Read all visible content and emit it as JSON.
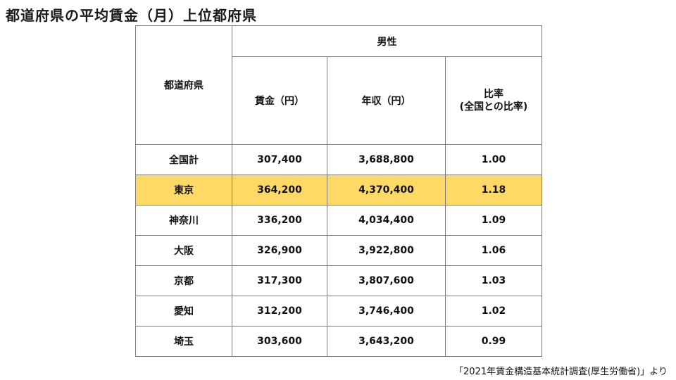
{
  "title": "都道府県の平均賃金（月）上位都府県",
  "table": {
    "header_prefecture": "都道府県",
    "header_group": "男性",
    "header_wage": "賃金（円）",
    "header_income": "年収（円）",
    "header_ratio_line1": "比率",
    "header_ratio_line2": "(全国との比率)",
    "rows": [
      {
        "prefecture": "全国計",
        "wage": "307,400",
        "income": "3,688,800",
        "ratio": "1.00"
      },
      {
        "prefecture": "東京",
        "wage": "364,200",
        "income": "4,370,400",
        "ratio": "1.18"
      },
      {
        "prefecture": "神奈川",
        "wage": "336,200",
        "income": "4,034,400",
        "ratio": "1.09"
      },
      {
        "prefecture": "大阪",
        "wage": "326,900",
        "income": "3,922,800",
        "ratio": "1.06"
      },
      {
        "prefecture": "京都",
        "wage": "317,300",
        "income": "3,807,600",
        "ratio": "1.03"
      },
      {
        "prefecture": "愛知",
        "wage": "312,200",
        "income": "3,746,400",
        "ratio": "1.02"
      },
      {
        "prefecture": "埼玉",
        "wage": "303,600",
        "income": "3,643,200",
        "ratio": "0.99"
      }
    ],
    "highlight_color": "#ffd966"
  },
  "source": "「2021年賃金構造基本統計調査(厚生労働省)」より"
}
